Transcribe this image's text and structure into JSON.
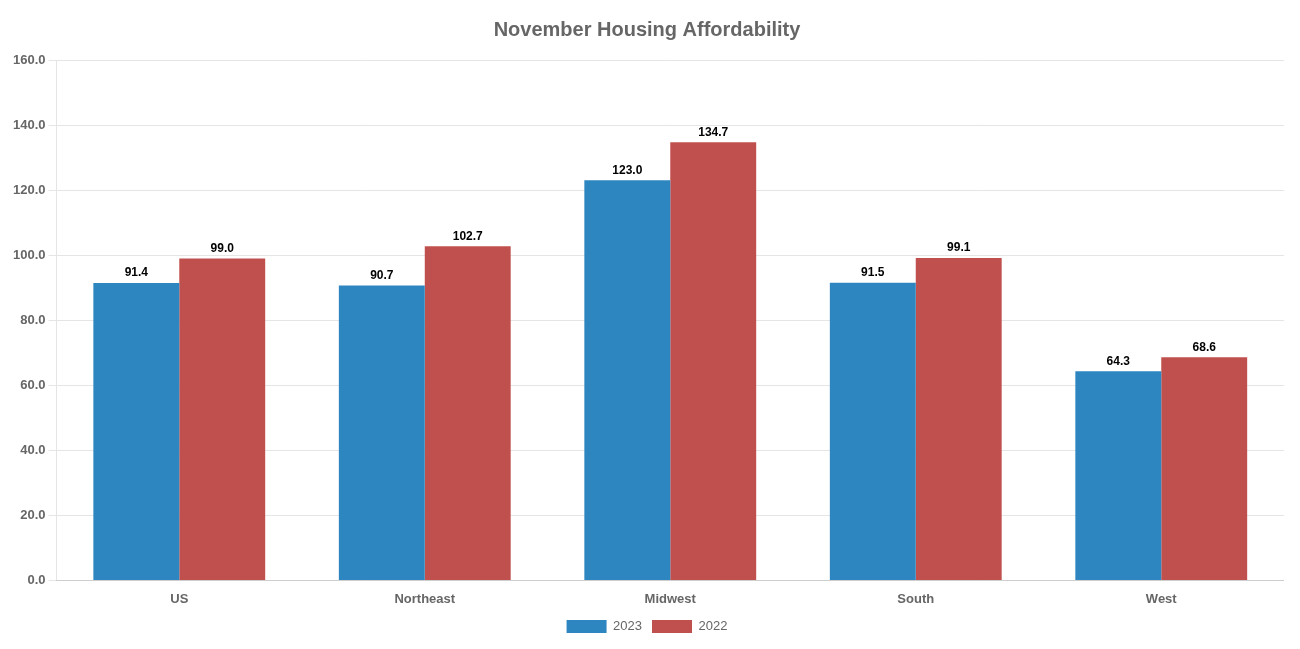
{
  "chart_data": {
    "type": "bar",
    "title": "November Housing Affordability",
    "categories": [
      "US",
      "Northeast",
      "Midwest",
      "South",
      "West"
    ],
    "series": [
      {
        "name": "2023",
        "color": "#2E86C1",
        "values": [
          91.4,
          90.7,
          123.0,
          91.5,
          64.3
        ],
        "value_labels": [
          "91.4",
          "90.7",
          "123.0",
          "91.5",
          "64.3"
        ]
      },
      {
        "name": "2022",
        "color": "#C0504D",
        "values": [
          99.0,
          102.7,
          134.7,
          99.1,
          68.6
        ],
        "value_labels": [
          "99.0",
          "102.7",
          "134.7",
          "99.1",
          "68.6"
        ]
      }
    ],
    "ylim": [
      0,
      160
    ],
    "yticks": [
      {
        "value": 0,
        "label": "0.0"
      },
      {
        "value": 20,
        "label": "20.0"
      },
      {
        "value": 40,
        "label": "40.0"
      },
      {
        "value": 60,
        "label": "60.0"
      },
      {
        "value": 80,
        "label": "80.0"
      },
      {
        "value": 100,
        "label": "100.0"
      },
      {
        "value": 120,
        "label": "120.0"
      },
      {
        "value": 140,
        "label": "140.0"
      },
      {
        "value": 160,
        "label": "160.0"
      }
    ],
    "grid": true,
    "legend": "bottom",
    "data_labels": true
  }
}
